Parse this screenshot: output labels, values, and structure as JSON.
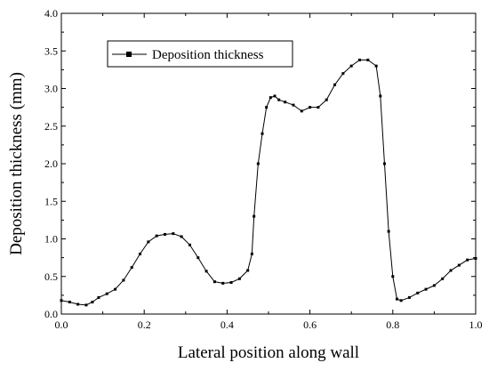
{
  "chart_data": {
    "type": "line",
    "xlabel": "Lateral position along wall",
    "ylabel": "Deposition thickness (mm)",
    "xlim": [
      0.0,
      1.0
    ],
    "ylim": [
      0.0,
      4.0
    ],
    "x_ticks": [
      "0.0",
      "0.2",
      "0.4",
      "0.6",
      "0.8",
      "1.0"
    ],
    "y_ticks": [
      "0.0",
      "0.5",
      "1.0",
      "1.5",
      "2.0",
      "2.5",
      "3.0",
      "3.5",
      "4.0"
    ],
    "grid": false,
    "legend_position": "top-left",
    "series": [
      {
        "name": "Deposition thickness",
        "color": "#000000",
        "marker": "square",
        "x": [
          0.0,
          0.02,
          0.04,
          0.06,
          0.075,
          0.09,
          0.11,
          0.13,
          0.15,
          0.17,
          0.19,
          0.21,
          0.23,
          0.25,
          0.27,
          0.29,
          0.31,
          0.33,
          0.35,
          0.37,
          0.39,
          0.41,
          0.43,
          0.45,
          0.46,
          0.465,
          0.475,
          0.485,
          0.495,
          0.505,
          0.515,
          0.525,
          0.54,
          0.56,
          0.58,
          0.6,
          0.62,
          0.64,
          0.66,
          0.68,
          0.7,
          0.72,
          0.74,
          0.76,
          0.77,
          0.78,
          0.79,
          0.8,
          0.81,
          0.82,
          0.84,
          0.86,
          0.88,
          0.9,
          0.92,
          0.94,
          0.96,
          0.98,
          1.0
        ],
        "y": [
          0.18,
          0.16,
          0.13,
          0.12,
          0.16,
          0.22,
          0.27,
          0.33,
          0.45,
          0.62,
          0.8,
          0.96,
          1.04,
          1.06,
          1.07,
          1.03,
          0.92,
          0.75,
          0.57,
          0.43,
          0.41,
          0.42,
          0.47,
          0.58,
          0.8,
          1.3,
          2.0,
          2.4,
          2.75,
          2.88,
          2.9,
          2.85,
          2.82,
          2.78,
          2.7,
          2.75,
          2.75,
          2.85,
          3.05,
          3.2,
          3.3,
          3.38,
          3.38,
          3.3,
          2.9,
          2.0,
          1.1,
          0.5,
          0.2,
          0.18,
          0.22,
          0.28,
          0.33,
          0.38,
          0.47,
          0.58,
          0.65,
          0.72,
          0.74
        ]
      }
    ]
  }
}
